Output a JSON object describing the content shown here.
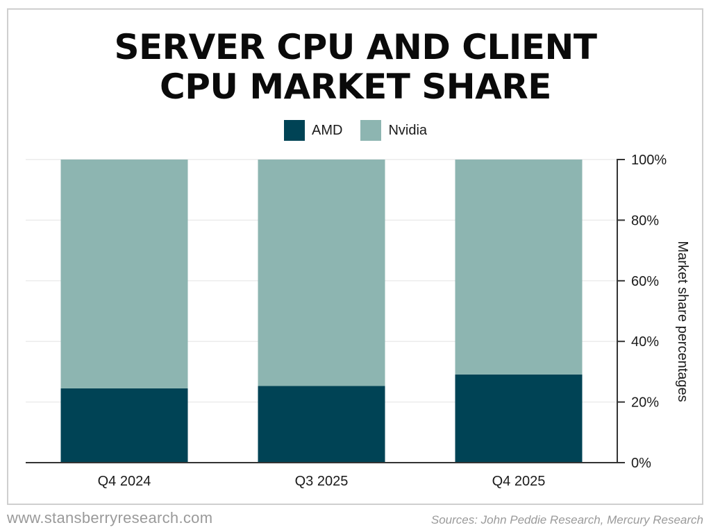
{
  "title_lines": [
    "SERVER CPU AND CLIENT",
    "CPU MARKET SHARE"
  ],
  "legend": [
    {
      "label": "AMD",
      "color": "#004355"
    },
    {
      "label": "Nvidia",
      "color": "#8db5b1"
    }
  ],
  "chart_data": {
    "type": "bar",
    "stacked": true,
    "title": "SERVER CPU AND CLIENT CPU MARKET SHARE",
    "categories": [
      "Q4 2024",
      "Q3 2025",
      "Q4 2025"
    ],
    "series": [
      {
        "name": "AMD",
        "color": "#004355",
        "values": [
          24.5,
          25.3,
          29.1
        ]
      },
      {
        "name": "Nvidia",
        "color": "#8db5b1",
        "values": [
          75.5,
          74.7,
          70.9
        ]
      }
    ],
    "xlabel": "",
    "ylabel": "Market share percentages",
    "y_axis_side": "right",
    "ylim": [
      0,
      100
    ],
    "yticks": [
      0,
      20,
      40,
      60,
      80,
      100
    ],
    "ytick_labels": [
      "0%",
      "20%",
      "40%",
      "60%",
      "80%",
      "100%"
    ],
    "grid": true,
    "legend_position": "top-center"
  },
  "footer": {
    "website": "www.stansberryresearch.com",
    "sources": "Sources: John Peddie Research, Mercury Research"
  }
}
